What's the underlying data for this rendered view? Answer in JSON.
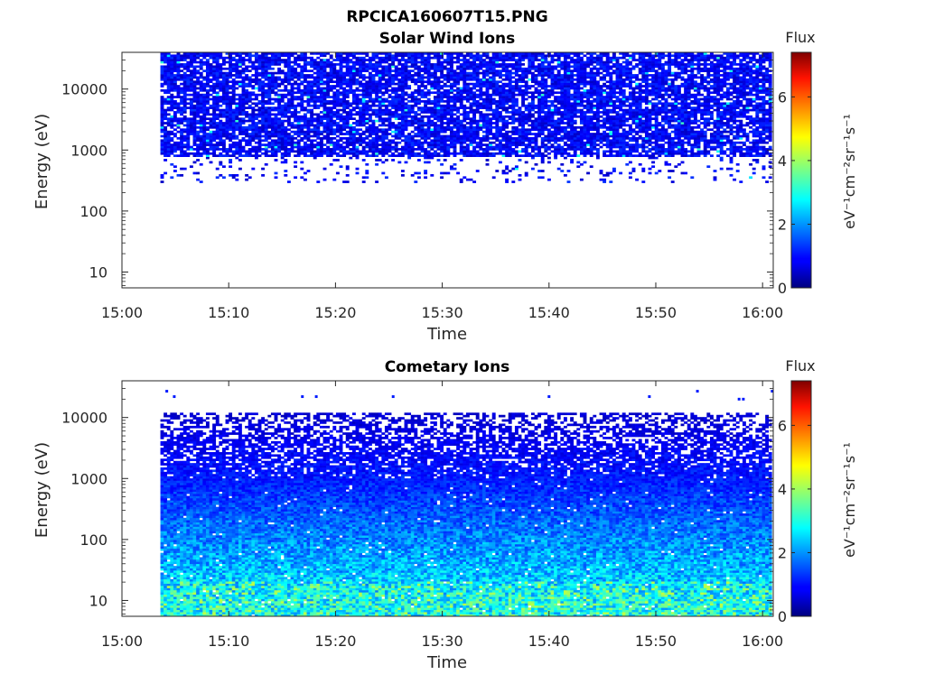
{
  "figure_title": "RPCICA160607T15.PNG",
  "chart_data": [
    {
      "type": "heatmap",
      "title": "Solar Wind Ions",
      "xlabel": "Time",
      "ylabel": "Energy (eV)",
      "xticks": [
        "15:00",
        "15:10",
        "15:20",
        "15:30",
        "15:40",
        "15:50",
        "16:00"
      ],
      "xlim_minutes": [
        0,
        61
      ],
      "yscale": "log",
      "ylim": [
        5.5,
        40000
      ],
      "yticks": [
        10,
        100,
        1000,
        10000
      ],
      "ytick_labels": [
        "10",
        "100",
        "1000",
        "10000"
      ],
      "data_start_minute": 3.6,
      "data_end_minute": 61,
      "energy_coverage_ev": [
        290,
        40000
      ],
      "dense_above_ev": 800,
      "typical_flux": 0.9,
      "flux_range": [
        0,
        7.4
      ],
      "colorbar": {
        "title": "Flux",
        "label": "eV⁻¹cm⁻²sr⁻¹s⁻¹",
        "ticks": [
          0,
          2,
          4,
          6
        ],
        "tick_labels": [
          "0",
          "2",
          "4",
          "6"
        ],
        "min": 0,
        "max": 7.4,
        "colormap": "jet"
      }
    },
    {
      "type": "heatmap",
      "title": "Cometary Ions",
      "xlabel": "Time",
      "ylabel": "Energy (eV)",
      "xticks": [
        "15:00",
        "15:10",
        "15:20",
        "15:30",
        "15:40",
        "15:50",
        "16:00"
      ],
      "xlim_minutes": [
        0,
        61
      ],
      "yscale": "log",
      "ylim": [
        5.5,
        40000
      ],
      "yticks": [
        10,
        100,
        1000,
        10000
      ],
      "ytick_labels": [
        "10",
        "100",
        "1000",
        "10000"
      ],
      "data_start_minute": 3.6,
      "data_end_minute": 61,
      "energy_coverage_ev": [
        5.5,
        12000
      ],
      "flux_trend": [
        {
          "energy_ev": 10,
          "flux": 2.8
        },
        {
          "energy_ev": 30,
          "flux": 2.3
        },
        {
          "energy_ev": 100,
          "flux": 1.9
        },
        {
          "energy_ev": 1000,
          "flux": 1.1
        },
        {
          "energy_ev": 10000,
          "flux": 0.6
        }
      ],
      "sparse_high_energy_points": [
        {
          "minute": 4.2,
          "energy_ev": 27000
        },
        {
          "minute": 4.9,
          "energy_ev": 22000
        },
        {
          "minute": 16.9,
          "energy_ev": 22000
        },
        {
          "minute": 18.2,
          "energy_ev": 22000
        },
        {
          "minute": 25.4,
          "energy_ev": 22000
        },
        {
          "minute": 40.0,
          "energy_ev": 22000
        },
        {
          "minute": 49.4,
          "energy_ev": 22000
        },
        {
          "minute": 53.9,
          "energy_ev": 27000
        },
        {
          "minute": 57.8,
          "energy_ev": 20000
        },
        {
          "minute": 58.2,
          "energy_ev": 20000
        },
        {
          "minute": 60.9,
          "energy_ev": 27000
        }
      ],
      "flux_range": [
        0,
        7.4
      ],
      "colorbar": {
        "title": "Flux",
        "label": "eV⁻¹cm⁻²sr⁻¹s⁻¹",
        "ticks": [
          0,
          2,
          4,
          6
        ],
        "tick_labels": [
          "0",
          "2",
          "4",
          "6"
        ],
        "min": 0,
        "max": 7.4,
        "colormap": "jet"
      }
    }
  ]
}
